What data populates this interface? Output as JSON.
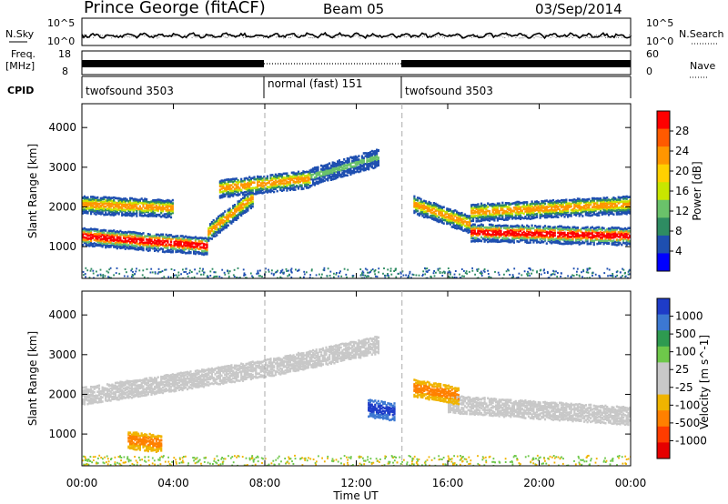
{
  "header": {
    "title": "Prince George (fitACF)",
    "beam": "Beam 05",
    "date": "03/Sep/2014"
  },
  "noise_panel": {
    "left_label": "N.Sky",
    "right_label": "N.Search",
    "left_ticks": [
      "10^5",
      "10^0"
    ],
    "right_ticks": [
      "10^5",
      "10^0"
    ]
  },
  "freq_panel": {
    "left_label_1": "Freq.",
    "left_label_2": "[MHz]",
    "right_label": "Nave",
    "left_ticks": [
      "18",
      "8"
    ],
    "right_ticks": [
      "60",
      "0"
    ]
  },
  "cpid_panel": {
    "label": "CPID",
    "segments": [
      {
        "name": "twofsound 3503",
        "start": 0,
        "end": 8
      },
      {
        "name": "normal (fast) 151",
        "start": 8,
        "end": 14
      },
      {
        "name": "twofsound 3503",
        "start": 14,
        "end": 24
      }
    ]
  },
  "time_axis": {
    "label": "Time UT",
    "ticks": [
      "00:00",
      "04:00",
      "08:00",
      "12:00",
      "16:00",
      "20:00",
      "00:00"
    ],
    "range_hours": [
      0,
      24
    ]
  },
  "chart_data": [
    {
      "type": "heatmap",
      "ylabel": "Slant Range [km]",
      "yticks": [
        1000,
        2000,
        3000,
        4000
      ],
      "ylim": [
        200,
        4600
      ],
      "colorbar_label": "Power [dB]",
      "colorbar_ticks": [
        "28",
        "24",
        "20",
        "16",
        "12",
        "8",
        "4"
      ],
      "colorbar_colors": [
        "#ff0000",
        "#ff5a00",
        "#ff9600",
        "#ffd000",
        "#c8e600",
        "#6ac26a",
        "#2e8c62",
        "#1e4fb0",
        "#0000ff"
      ],
      "bands": [
        {
          "t_start": 0,
          "t_end": 5.5,
          "r_start": 1300,
          "r_end": 1050,
          "level": "high"
        },
        {
          "t_start": 5.5,
          "t_end": 7.5,
          "r_start": 1400,
          "r_end": 2300,
          "level": "mid"
        },
        {
          "t_start": 0,
          "t_end": 4,
          "r_start": 2100,
          "r_end": 2000,
          "level": "mid"
        },
        {
          "t_start": 6,
          "t_end": 10,
          "r_start": 2500,
          "r_end": 2750,
          "level": "mid"
        },
        {
          "t_start": 10,
          "t_end": 13,
          "r_start": 2800,
          "r_end": 3300,
          "level": "low"
        },
        {
          "t_start": 14.5,
          "t_end": 17,
          "r_start": 2100,
          "r_end": 1600,
          "level": "mid"
        },
        {
          "t_start": 17,
          "t_end": 24,
          "r_start": 1400,
          "r_end": 1300,
          "level": "high"
        },
        {
          "t_start": 17,
          "t_end": 24,
          "r_start": 1900,
          "r_end": 2100,
          "level": "mid"
        }
      ]
    },
    {
      "type": "heatmap",
      "ylabel": "Slant Range [km]",
      "yticks": [
        1000,
        2000,
        3000,
        4000
      ],
      "ylim": [
        200,
        4600
      ],
      "colorbar_label": "Velocity [m s^-1]",
      "colorbar_ticks": [
        "1000",
        "500",
        "100",
        "25",
        "-25",
        "-100",
        "-500",
        "-1000"
      ],
      "colorbar_colors": [
        "#1e3cc8",
        "#3c78d2",
        "#2e9a50",
        "#6ec84a",
        "#c8c8c8",
        "#c8c8c8",
        "#f0b400",
        "#ff8000",
        "#ff3c00",
        "#e60000"
      ],
      "bands": [
        {
          "t_start": 0,
          "t_end": 8,
          "r_start": 2000,
          "r_end": 2700,
          "level": "ground"
        },
        {
          "t_start": 8,
          "t_end": 13,
          "r_start": 2700,
          "r_end": 3300,
          "level": "ground"
        },
        {
          "t_start": 16,
          "t_end": 24,
          "r_start": 1800,
          "r_end": 1500,
          "level": "ground"
        },
        {
          "t_start": 2,
          "t_end": 3.5,
          "r_start": 900,
          "r_end": 800,
          "level": "negative"
        },
        {
          "t_start": 12.5,
          "t_end": 13.7,
          "r_start": 1700,
          "r_end": 1600,
          "level": "positive"
        },
        {
          "t_start": 14.5,
          "t_end": 16.5,
          "r_start": 2200,
          "r_end": 2000,
          "level": "negative"
        }
      ]
    }
  ]
}
